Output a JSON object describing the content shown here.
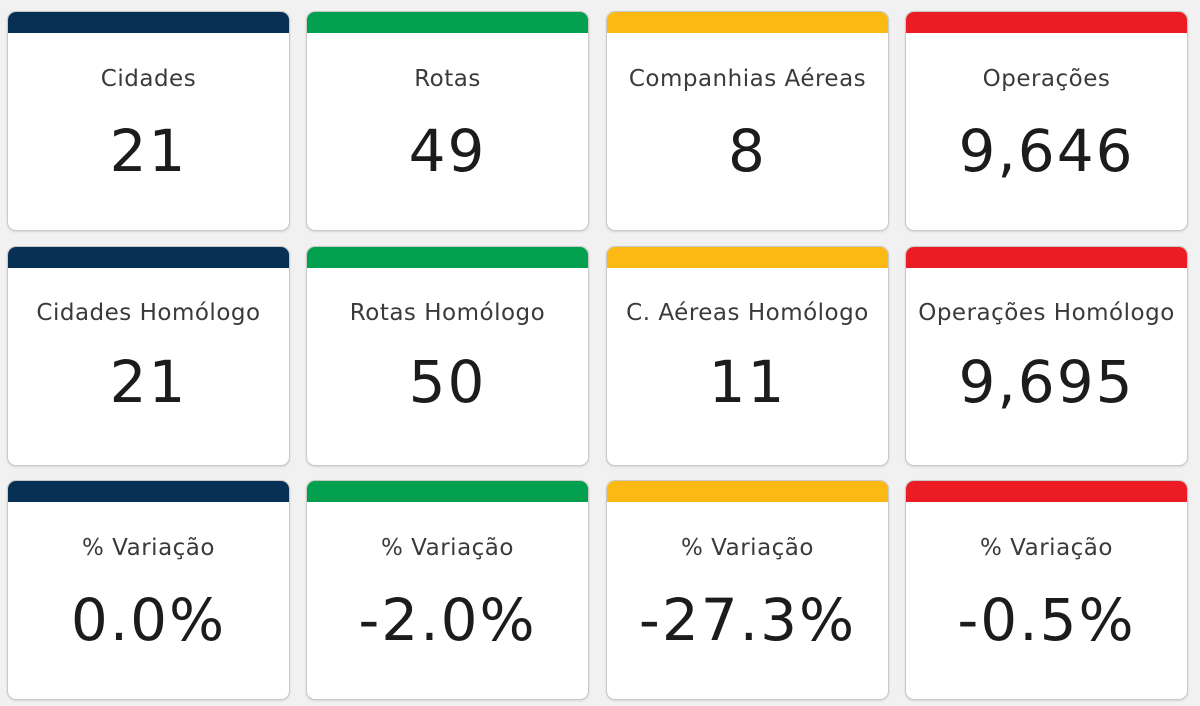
{
  "colors": {
    "navy": "#083055",
    "green": "#00a04e",
    "yellow": "#fdb913",
    "red": "#ec1c24"
  },
  "rows": [
    {
      "cards": [
        {
          "label": "Cidades",
          "value": "21",
          "color": "#083055"
        },
        {
          "label": "Rotas",
          "value": "49",
          "color": "#00a04e"
        },
        {
          "label": "Companhias Aéreas",
          "value": "8",
          "color": "#fdb913"
        },
        {
          "label": "Operações",
          "value": "9,646",
          "color": "#ec1c24"
        }
      ]
    },
    {
      "cards": [
        {
          "label": "Cidades Homólogo",
          "value": "21",
          "color": "#083055"
        },
        {
          "label": "Rotas Homólogo",
          "value": "50",
          "color": "#00a04e"
        },
        {
          "label": "C. Aéreas Homólogo",
          "value": "11",
          "color": "#fdb913"
        },
        {
          "label": "Operações Homólogo",
          "value": "9,695",
          "color": "#ec1c24"
        }
      ]
    },
    {
      "cards": [
        {
          "label": "% Variação",
          "value": "0.0%",
          "color": "#083055"
        },
        {
          "label": "% Variação",
          "value": "-2.0%",
          "color": "#00a04e"
        },
        {
          "label": "% Variação",
          "value": "-27.3%",
          "color": "#fdb913"
        },
        {
          "label": "% Variação",
          "value": "-0.5%",
          "color": "#ec1c24"
        }
      ]
    }
  ]
}
